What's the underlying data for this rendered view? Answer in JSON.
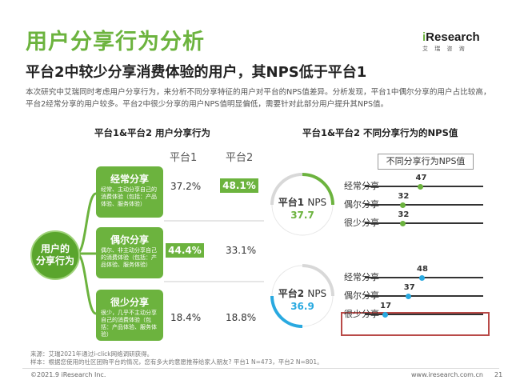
{
  "header": {
    "title": "用户分享行为分析",
    "subtitle": "平台2中较少分享消费体验的用户，其NPS低于平台1",
    "description": "本次研究中艾瑞同时考虑用户分享行为，来分析不同分享特征的用户对平台的NPS值差异。分析发现，平台1中偶尔分享的用户占比较高，平台2经常分享的用户较多。平台2中很少分享的用户NPS值明显偏低，需要针对此部分用户提升其NPS值。",
    "logo_main": "Research",
    "logo_i": "i",
    "logo_sub": "艾 瑞 咨 询"
  },
  "colors": {
    "green": "#6cb33e",
    "blue": "#29a9e0",
    "highlight_border": "#b94a48"
  },
  "left_chart": {
    "title": "平台1&平台2 用户分享行为",
    "hub_label_line1": "用户的",
    "hub_label_line2": "分享行为",
    "columns": [
      "平台1",
      "平台2"
    ],
    "categories": [
      {
        "name": "经常分享",
        "desc": "经常、主动分享自己的消费体验（包括：产品体验、服务体验）",
        "p1": "37.2%",
        "p2": "48.1%",
        "highlight": "p2"
      },
      {
        "name": "偶尔分享",
        "desc": "偶尔、非主动分享自己的消费体验（包括：产品体验、服务体验）",
        "p1": "44.4%",
        "p2": "33.1%",
        "highlight": "p1"
      },
      {
        "name": "很少分享",
        "desc": "很少，几乎不主动分享自己的消费体验（包括：产品体验、服务体验）",
        "p1": "18.4%",
        "p2": "18.8%",
        "highlight": "none"
      }
    ]
  },
  "right_chart": {
    "title": "平台1&平台2 不同分享行为的NPS值",
    "legend_box": "不同分享行为NPS值",
    "platforms": [
      {
        "label": "平台1",
        "nps_word": "NPS",
        "overall": 37.7,
        "overall_text": "37.7",
        "color": "#6cb33e"
      },
      {
        "label": "平台2",
        "nps_word": "NPS",
        "overall": 36.9,
        "overall_text": "36.9",
        "color": "#29a9e0"
      }
    ]
  },
  "chart_data": [
    {
      "type": "table",
      "title": "平台1&平台2 用户分享行为",
      "categories": [
        "经常分享",
        "偶尔分享",
        "很少分享"
      ],
      "series": [
        {
          "name": "平台1",
          "values": [
            37.2,
            44.4,
            18.4
          ]
        },
        {
          "name": "平台2",
          "values": [
            48.1,
            33.1,
            18.8
          ]
        }
      ]
    },
    {
      "type": "bar",
      "title": "平台1&平台2 不同分享行为的NPS值",
      "categories": [
        "经常分享",
        "偶尔分享",
        "很少分享"
      ],
      "series": [
        {
          "name": "平台1",
          "values": [
            47,
            32,
            32
          ]
        },
        {
          "name": "平台2",
          "values": [
            48,
            37,
            17
          ]
        }
      ],
      "xlim": [
        0,
        100
      ]
    }
  ],
  "footer": {
    "source": "来源：艾瑞2021年通过i-click网络调研获得。",
    "sample": "样本：根据您使用的社区团购平台的情况，您有多大的意愿推荐给家人朋友? 平台1 N=473，平台2 N=801。",
    "copyright": "©2021.9 iResearch Inc.",
    "website": "www.iresearch.com.cn",
    "page": "21"
  }
}
